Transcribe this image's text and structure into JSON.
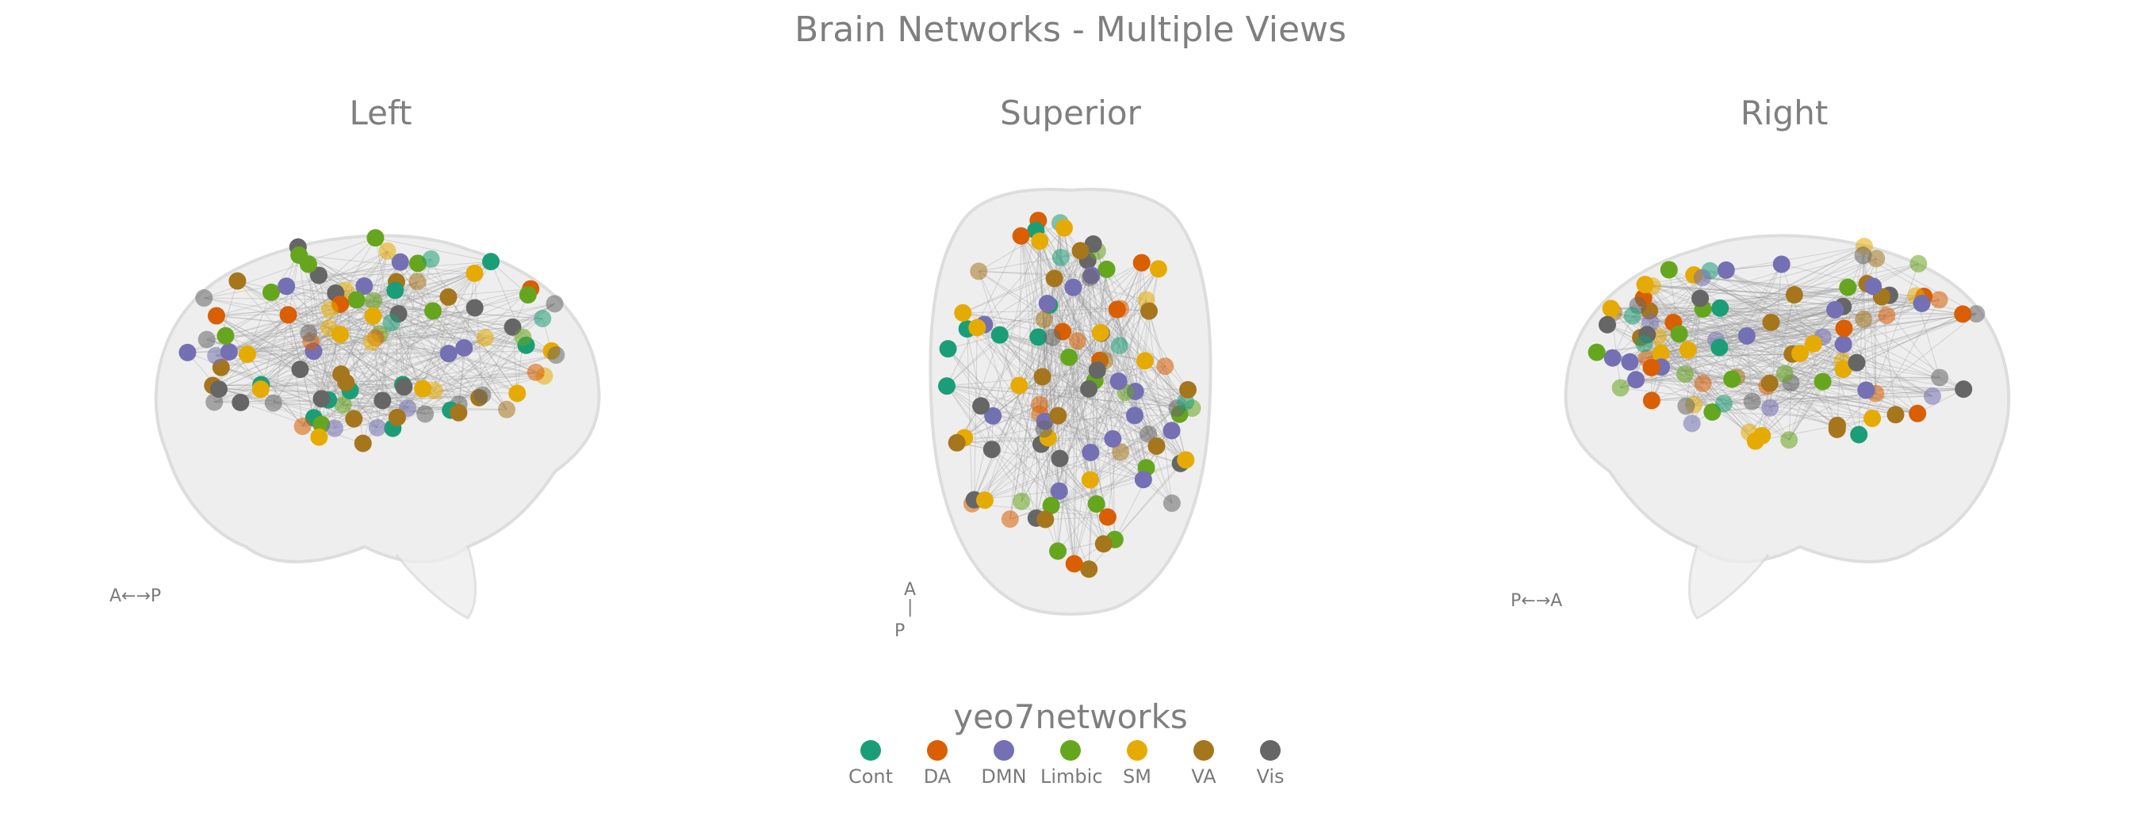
{
  "title": "Brain Networks - Multiple Views",
  "views": [
    {
      "id": "left",
      "title": "Left",
      "orientation": "A←→P"
    },
    {
      "id": "superior",
      "title": "Superior",
      "orientation_top": "A",
      "orientation_bottom": "P"
    },
    {
      "id": "right",
      "title": "Right",
      "orientation": "P←→A"
    }
  ],
  "legend": {
    "title": "yeo7networks",
    "items": [
      {
        "label": "Cont",
        "color": "#1b9e77"
      },
      {
        "label": "DA",
        "color": "#d95f02"
      },
      {
        "label": "DMN",
        "color": "#7570b3"
      },
      {
        "label": "Limbic",
        "color": "#66a61e"
      },
      {
        "label": "SM",
        "color": "#e6ab02"
      },
      {
        "label": "VA",
        "color": "#a6761d"
      },
      {
        "label": "Vis",
        "color": "#666666"
      }
    ]
  },
  "node_count_per_view": 100,
  "edge_color": "#9a9a9a"
}
